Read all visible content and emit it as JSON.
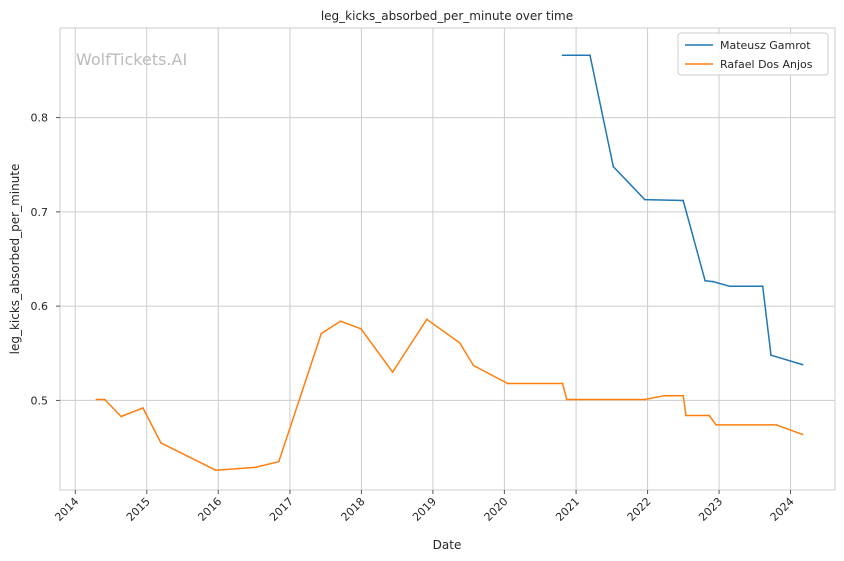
{
  "chart_data": {
    "type": "line",
    "title": "leg_kicks_absorbed_per_minute over time",
    "xlabel": "Date",
    "ylabel": "leg_kicks_absorbed_per_minute",
    "watermark": "WolfTickets.AI",
    "xlim": [
      "2013-10-15",
      "2024-08-15"
    ],
    "ylim": [
      0.405,
      0.895
    ],
    "x_ticks": [
      "2014",
      "2015",
      "2016",
      "2017",
      "2018",
      "2019",
      "2020",
      "2021",
      "2022",
      "2023",
      "2024"
    ],
    "y_ticks": [
      0.5,
      0.6,
      0.7,
      0.8
    ],
    "grid": true,
    "legend_position": "top-right",
    "series": [
      {
        "name": "Mateusz Gamrot",
        "color": "#1f77b4",
        "points": [
          {
            "x": "2020-10-24",
            "y": 0.866
          },
          {
            "x": "2021-03-13",
            "y": 0.866
          },
          {
            "x": "2021-07-10",
            "y": 0.748
          },
          {
            "x": "2021-12-18",
            "y": 0.713
          },
          {
            "x": "2022-07-02",
            "y": 0.712
          },
          {
            "x": "2022-10-22",
            "y": 0.627
          },
          {
            "x": "2022-12-01",
            "y": 0.626
          },
          {
            "x": "2023-02-25",
            "y": 0.621
          },
          {
            "x": "2023-08-12",
            "y": 0.621
          },
          {
            "x": "2023-09-23",
            "y": 0.548
          },
          {
            "x": "2024-03-02",
            "y": 0.538
          }
        ]
      },
      {
        "name": "Rafael Dos Anjos",
        "color": "#ff7f0e",
        "points": [
          {
            "x": "2014-04-19",
            "y": 0.501
          },
          {
            "x": "2014-05-31",
            "y": 0.501
          },
          {
            "x": "2014-08-23",
            "y": 0.483
          },
          {
            "x": "2014-12-13",
            "y": 0.492
          },
          {
            "x": "2015-03-14",
            "y": 0.455
          },
          {
            "x": "2015-12-19",
            "y": 0.426
          },
          {
            "x": "2016-07-07",
            "y": 0.429
          },
          {
            "x": "2016-11-05",
            "y": 0.435
          },
          {
            "x": "2017-06-10",
            "y": 0.571
          },
          {
            "x": "2017-09-16",
            "y": 0.584
          },
          {
            "x": "2017-12-30",
            "y": 0.576
          },
          {
            "x": "2018-06-09",
            "y": 0.53
          },
          {
            "x": "2018-12-01",
            "y": 0.586
          },
          {
            "x": "2019-05-18",
            "y": 0.561
          },
          {
            "x": "2019-07-27",
            "y": 0.537
          },
          {
            "x": "2020-01-18",
            "y": 0.518
          },
          {
            "x": "2020-10-24",
            "y": 0.518
          },
          {
            "x": "2020-11-14",
            "y": 0.501
          },
          {
            "x": "2021-12-18",
            "y": 0.501
          },
          {
            "x": "2022-03-26",
            "y": 0.505
          },
          {
            "x": "2022-07-02",
            "y": 0.505
          },
          {
            "x": "2022-07-16",
            "y": 0.484
          },
          {
            "x": "2022-11-12",
            "y": 0.484
          },
          {
            "x": "2022-12-17",
            "y": 0.474
          },
          {
            "x": "2023-10-21",
            "y": 0.474
          },
          {
            "x": "2024-03-02",
            "y": 0.464
          }
        ]
      }
    ]
  }
}
